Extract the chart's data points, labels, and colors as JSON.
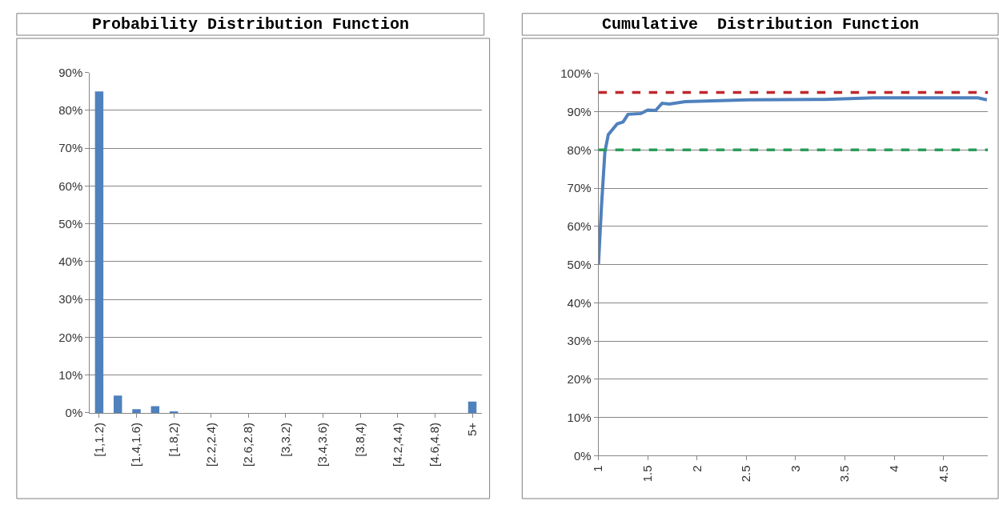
{
  "chart_data": [
    {
      "type": "bar",
      "title": "Probability Distribution Function",
      "categories": [
        "[1,1.2)",
        null,
        "[1.4,1.6)",
        null,
        "[1.8,2)",
        null,
        "[2.2,2.4)",
        null,
        "[2.6,2.8)",
        null,
        "[3,3.2)",
        null,
        "[3.4,3.6)",
        null,
        "[3.8,4)",
        null,
        "[4.2,4.4)",
        null,
        "[4.6,4.8)",
        null,
        "5+"
      ],
      "values": [
        85,
        4.6,
        1,
        1.8,
        0.4,
        0,
        0,
        0,
        0,
        0,
        0,
        0,
        0,
        0,
        0,
        0,
        0,
        0,
        0,
        0,
        3
      ],
      "color": "#4f81bd",
      "ylim": [
        0,
        90
      ],
      "yticks": [
        {
          "value": 0,
          "label": "0%"
        },
        {
          "value": 10,
          "label": "10%"
        },
        {
          "value": 20,
          "label": "20%"
        },
        {
          "value": 30,
          "label": "30%"
        },
        {
          "value": 40,
          "label": "40%"
        },
        {
          "value": 50,
          "label": "50%"
        },
        {
          "value": 60,
          "label": "60%"
        },
        {
          "value": 70,
          "label": "70%"
        },
        {
          "value": 80,
          "label": "80%"
        },
        {
          "value": 90,
          "label": "90%"
        }
      ],
      "grid": "y"
    },
    {
      "type": "line",
      "title": "Cumulative  Distribution Function",
      "x": [
        1,
        1.03,
        1.065,
        1.1,
        1.19,
        1.25,
        1.3,
        1.43,
        1.5,
        1.58,
        1.645,
        1.72,
        1.88,
        2.51,
        3.29,
        3.79,
        4.85,
        4.94
      ],
      "values": [
        50,
        65,
        79.5,
        84,
        86.8,
        87.3,
        89.3,
        89.5,
        90.4,
        90.3,
        92.2,
        92,
        92.6,
        93.1,
        93.2,
        93.6,
        93.6,
        93.1
      ],
      "color": "#4f81bd",
      "marker": "none",
      "line_style": "solid",
      "xlim": [
        1,
        4.95
      ],
      "xticks": [
        1,
        1.5,
        2,
        2.5,
        3,
        3.5,
        4,
        4.5
      ],
      "ylim": [
        0,
        100
      ],
      "yticks": [
        {
          "value": 0,
          "label": "0%"
        },
        {
          "value": 10,
          "label": "10%"
        },
        {
          "value": 20,
          "label": "20%"
        },
        {
          "value": 30,
          "label": "30%"
        },
        {
          "value": 40,
          "label": "40%"
        },
        {
          "value": 50,
          "label": "50%"
        },
        {
          "value": 60,
          "label": "60%"
        },
        {
          "value": 70,
          "label": "70%"
        },
        {
          "value": 80,
          "label": "80%"
        },
        {
          "value": 90,
          "label": "90%"
        },
        {
          "value": 100,
          "label": "100%"
        }
      ],
      "ref_lines": [
        {
          "axis": "y",
          "value": 95,
          "color": "#c0282d",
          "line_style": "dashed"
        },
        {
          "axis": "y",
          "value": 80,
          "color": "#2a9d5a",
          "line_style": "dashed"
        }
      ],
      "grid": "y"
    }
  ]
}
